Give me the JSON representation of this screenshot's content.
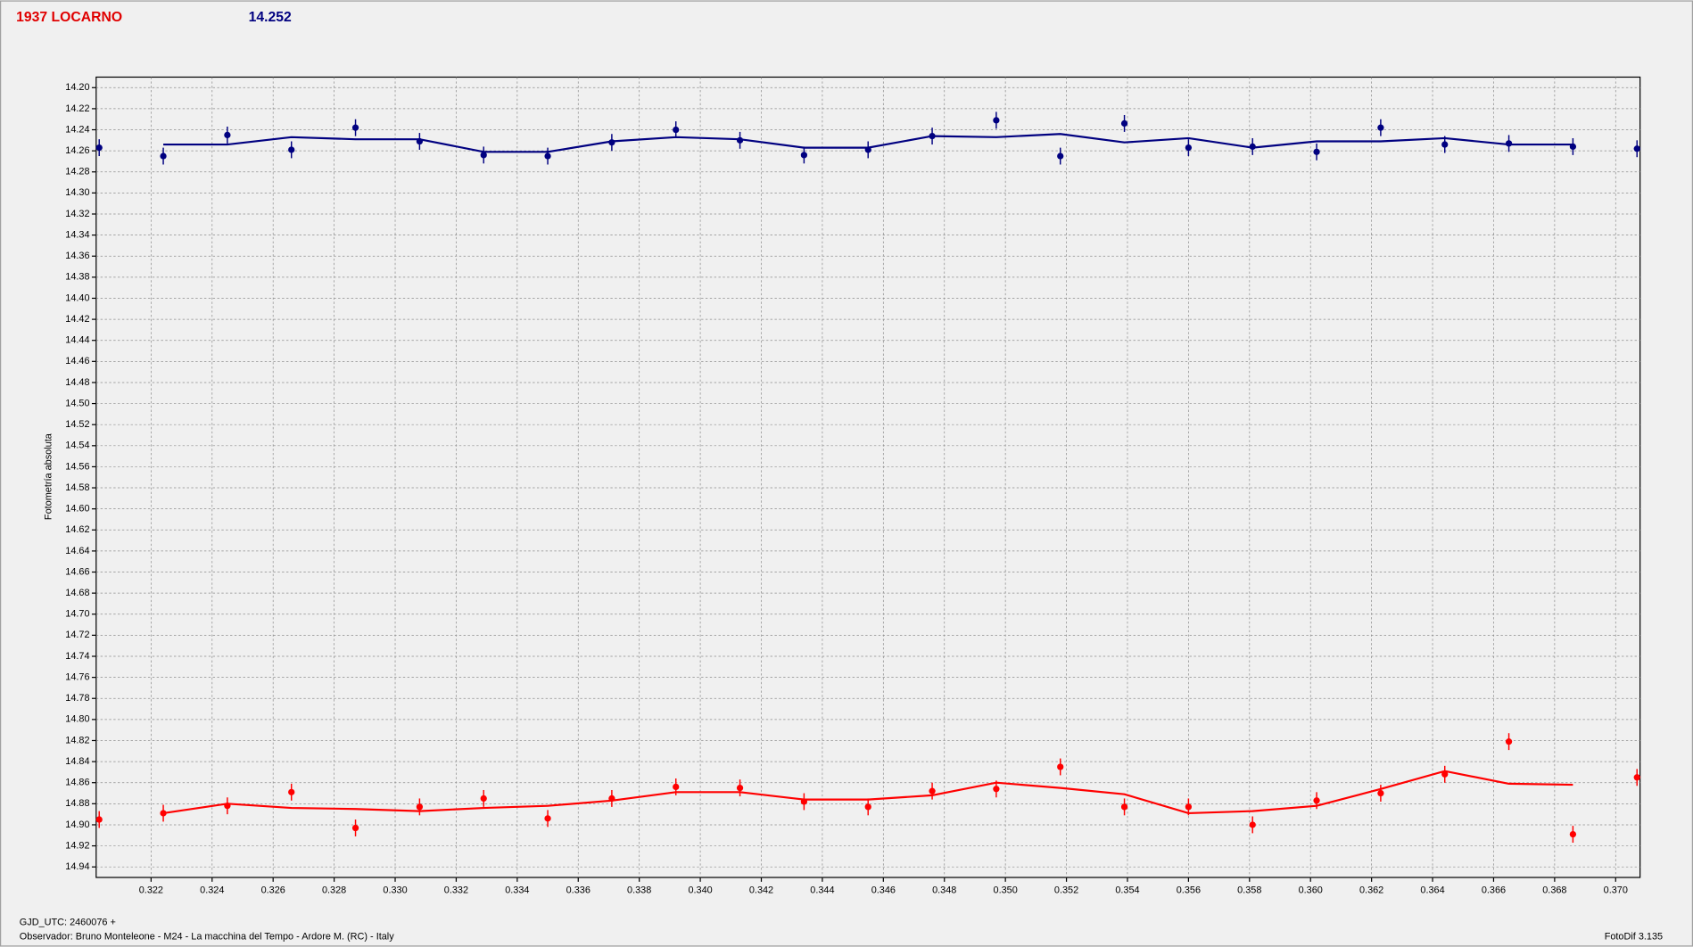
{
  "chart_data": {
    "type": "scatter",
    "title": "1937 LOCARNO",
    "subtitle": "14.252",
    "y_label": "Fotometría absoluta",
    "x_note": "GJD_UTC: 2460076 +",
    "footer": "Observador: Bruno Monteleone - M24 - La macchina del Tempo - Ardore M. (RC) - Italy",
    "software": "FotoDif 3.135",
    "invert_y": true,
    "grid": true,
    "xlim": [
      0.3202,
      0.3708
    ],
    "ylim": [
      14.19,
      14.95
    ],
    "xticks": [
      0.322,
      0.324,
      0.326,
      0.328,
      {
        "value": 0.33,
        "label": "0.330"
      },
      0.332,
      0.334,
      0.336,
      0.338,
      {
        "value": 0.34,
        "label": "0.340"
      },
      0.342,
      0.344,
      0.346,
      0.348,
      {
        "value": 0.35,
        "label": "0.350"
      },
      0.352,
      0.354,
      0.356,
      0.358,
      {
        "value": 0.36,
        "label": "0.360"
      },
      0.362,
      0.364,
      0.366,
      0.368,
      {
        "value": 0.37,
        "label": "0.370"
      }
    ],
    "yticks": [
      {
        "value": 14.2,
        "label": "14.20"
      },
      14.22,
      14.24,
      14.26,
      14.28,
      {
        "value": 14.3,
        "label": "14.30"
      },
      14.32,
      14.34,
      14.36,
      14.38,
      {
        "value": 14.4,
        "label": "14.40"
      },
      14.42,
      14.44,
      14.46,
      14.48,
      {
        "value": 14.5,
        "label": "14.50"
      },
      14.52,
      14.54,
      14.56,
      14.58,
      {
        "value": 14.6,
        "label": "14.60"
      },
      14.62,
      14.64,
      14.66,
      14.68,
      {
        "value": 14.7,
        "label": "14.70"
      },
      14.72,
      14.74,
      14.76,
      14.78,
      {
        "value": 14.8,
        "label": "14.80"
      },
      14.82,
      14.84,
      14.86,
      14.88,
      {
        "value": 14.9,
        "label": "14.90"
      },
      14.92,
      14.94
    ],
    "x": [
      0.3203,
      0.3224,
      0.3245,
      0.3266,
      0.3287,
      0.3308,
      0.3329,
      0.335,
      0.3371,
      0.3392,
      0.3413,
      0.3434,
      0.3455,
      0.3476,
      0.3497,
      0.3518,
      0.3539,
      0.356,
      0.3581,
      0.3602,
      0.3623,
      0.3644,
      0.3665,
      0.3686,
      0.3707
    ],
    "series": [
      {
        "color": "#000080",
        "error": 0.008,
        "values": [
          14.257,
          14.265,
          14.245,
          14.259,
          14.238,
          14.251,
          14.264,
          14.265,
          14.252,
          14.24,
          14.25,
          14.264,
          14.259,
          14.246,
          14.231,
          14.265,
          14.234,
          14.257,
          14.256,
          14.261,
          14.238,
          14.254,
          14.253,
          14.256,
          14.258
        ],
        "trend": [
          null,
          14.254,
          14.254,
          14.247,
          14.249,
          14.249,
          14.261,
          14.261,
          14.251,
          14.247,
          14.249,
          14.257,
          14.257,
          14.246,
          14.247,
          14.244,
          14.252,
          14.248,
          14.257,
          14.251,
          14.251,
          14.248,
          14.254,
          14.254,
          null
        ]
      },
      {
        "color": "#ff0000",
        "error": 0.008,
        "values": [
          14.895,
          14.889,
          14.882,
          14.869,
          14.903,
          14.883,
          14.875,
          14.894,
          14.875,
          14.864,
          14.865,
          14.878,
          14.883,
          14.868,
          14.866,
          14.845,
          14.883,
          14.883,
          14.9,
          14.877,
          14.87,
          14.852,
          14.821,
          14.909,
          14.855
        ],
        "trend": [
          null,
          14.889,
          14.88,
          14.884,
          14.885,
          14.887,
          14.884,
          14.882,
          14.877,
          14.869,
          14.869,
          14.876,
          14.876,
          14.872,
          14.86,
          14.865,
          14.871,
          14.889,
          14.887,
          14.882,
          14.866,
          14.849,
          14.861,
          14.862,
          null
        ]
      }
    ]
  }
}
